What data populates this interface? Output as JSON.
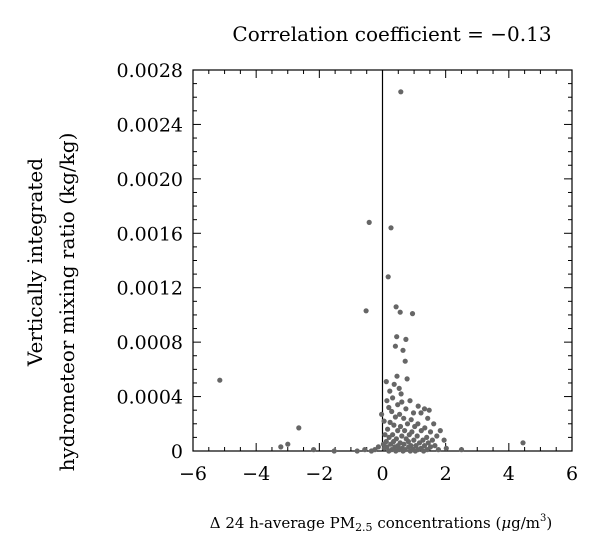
{
  "chart_data": {
    "type": "scatter",
    "title": "Correlation coefficient = −0.13",
    "ylabel_lines": [
      "Vertically integrated",
      "hydrometeor mixing ratio (kg/kg)"
    ],
    "xlabel": {
      "prefix": "Δ 24 h-average PM",
      "sub": "2.5",
      "mid": " concentrations (",
      "mu": "μ",
      "unit": "g/m",
      "sup": "3",
      "suffix": ")"
    },
    "xlim": [
      -6,
      6
    ],
    "ylim": [
      0,
      0.0028
    ],
    "x_ticks": [
      -6,
      -4,
      -2,
      0,
      2,
      4,
      6
    ],
    "x_tick_labels": [
      "−6",
      "−4",
      "−2",
      "0",
      "2",
      "4",
      "6"
    ],
    "y_ticks": [
      0,
      0.0004,
      0.0008,
      0.0012,
      0.0016,
      0.002,
      0.0024,
      0.0028
    ],
    "y_tick_labels": [
      "0",
      "0.0004",
      "0.0008",
      "0.0012",
      "0.0016",
      "0.0020",
      "0.0024",
      "0.0028"
    ],
    "vline_x": 0,
    "point_color": "#666666",
    "points": [
      [
        0.58,
        0.00264
      ],
      [
        -0.42,
        0.00168
      ],
      [
        0.27,
        0.00164
      ],
      [
        0.18,
        0.00128
      ],
      [
        0.43,
        0.00106
      ],
      [
        0.56,
        0.00102
      ],
      [
        -0.52,
        0.00103
      ],
      [
        0.95,
        0.00101
      ],
      [
        0.45,
        0.00084
      ],
      [
        0.74,
        0.00082
      ],
      [
        0.41,
        0.00077
      ],
      [
        0.65,
        0.00074
      ],
      [
        0.72,
        0.00066
      ],
      [
        0.46,
        0.00055
      ],
      [
        0.78,
        0.00053
      ],
      [
        -5.15,
        0.00052
      ],
      [
        0.12,
        0.00051
      ],
      [
        0.37,
        0.00049
      ],
      [
        0.53,
        0.00046
      ],
      [
        0.23,
        0.00044
      ],
      [
        0.59,
        0.00042
      ],
      [
        0.32,
        0.00039
      ],
      [
        0.14,
        0.00037
      ],
      [
        0.61,
        0.00036
      ],
      [
        0.87,
        0.00037
      ],
      [
        0.48,
        0.00034
      ],
      [
        0.2,
        0.00032
      ],
      [
        0.74,
        0.00031
      ],
      [
        1.13,
        0.00033
      ],
      [
        1.33,
        0.00031
      ],
      [
        1.48,
        0.0003
      ],
      [
        0.29,
        0.00029
      ],
      [
        0.54,
        0.00027
      ],
      [
        0.98,
        0.00028
      ],
      [
        1.22,
        0.00028
      ],
      [
        -0.03,
        0.00027
      ],
      [
        0.41,
        0.00025
      ],
      [
        0.67,
        0.00024
      ],
      [
        0.91,
        0.00023
      ],
      [
        1.43,
        0.00024
      ],
      [
        0.05,
        0.00022
      ],
      [
        0.24,
        0.00021
      ],
      [
        0.79,
        0.0002
      ],
      [
        1.12,
        0.0002
      ],
      [
        1.62,
        0.0002
      ],
      [
        0.36,
        0.00019
      ],
      [
        0.57,
        0.00018
      ],
      [
        1.02,
        0.00018
      ],
      [
        1.34,
        0.00017
      ],
      [
        0.16,
        0.00016
      ],
      [
        0.48,
        0.00015
      ],
      [
        0.7,
        0.00015
      ],
      [
        0.93,
        0.00014
      ],
      [
        1.23,
        0.00015
      ],
      [
        1.52,
        0.00014
      ],
      [
        1.83,
        0.00015
      ],
      [
        0.08,
        0.00012
      ],
      [
        0.32,
        0.00012
      ],
      [
        0.61,
        0.00011
      ],
      [
        0.85,
        0.00012
      ],
      [
        1.1,
        0.00011
      ],
      [
        1.4,
        0.0001
      ],
      [
        1.72,
        0.00011
      ],
      [
        0.21,
        0.0001
      ],
      [
        0.44,
        9e-05
      ],
      [
        0.75,
        9e-05
      ],
      [
        0.99,
        8e-05
      ],
      [
        1.28,
        8e-05
      ],
      [
        1.58,
        8e-05
      ],
      [
        1.95,
        8e-05
      ],
      [
        0.12,
        7e-05
      ],
      [
        0.35,
        7e-05
      ],
      [
        0.56,
        6e-05
      ],
      [
        0.82,
        7e-05
      ],
      [
        1.17,
        6e-05
      ],
      [
        1.45,
        6e-05
      ],
      [
        0.03,
        5e-05
      ],
      [
        0.26,
        5e-05
      ],
      [
        0.49,
        4e-05
      ],
      [
        0.68,
        5e-05
      ],
      [
        0.9,
        4e-05
      ],
      [
        1.06,
        4e-05
      ],
      [
        1.33,
        4e-05
      ],
      [
        1.66,
        4e-05
      ],
      [
        0.14,
        3e-05
      ],
      [
        0.39,
        3e-05
      ],
      [
        0.62,
        2e-05
      ],
      [
        0.83,
        3e-05
      ],
      [
        1.22,
        2e-05
      ],
      [
        1.52,
        3e-05
      ],
      [
        0.06,
        2e-05
      ],
      [
        0.29,
        1e-05
      ],
      [
        0.52,
        1e-05
      ],
      [
        0.72,
        1e-05
      ],
      [
        0.97,
        1e-05
      ],
      [
        1.12,
        1e-05
      ],
      [
        1.42,
        1e-05
      ],
      [
        1.77,
        1e-05
      ],
      [
        0.2,
        0.0
      ],
      [
        0.42,
        0.0
      ],
      [
        0.65,
        0.0
      ],
      [
        0.88,
        0.0
      ],
      [
        1.04,
        0.0
      ],
      [
        1.3,
        0.0
      ],
      [
        2.02,
        2e-05
      ],
      [
        2.5,
        1e-05
      ],
      [
        -0.13,
        3e-05
      ],
      [
        -0.24,
        1e-05
      ],
      [
        -0.35,
        0.0
      ],
      [
        -0.56,
        1e-05
      ],
      [
        -0.8,
        0.0
      ],
      [
        -1.53,
        0.0
      ],
      [
        -2.18,
        1e-05
      ],
      [
        -2.65,
        0.00017
      ],
      [
        -3.0,
        5e-05
      ],
      [
        -3.22,
        3e-05
      ],
      [
        4.45,
        6e-05
      ]
    ]
  }
}
